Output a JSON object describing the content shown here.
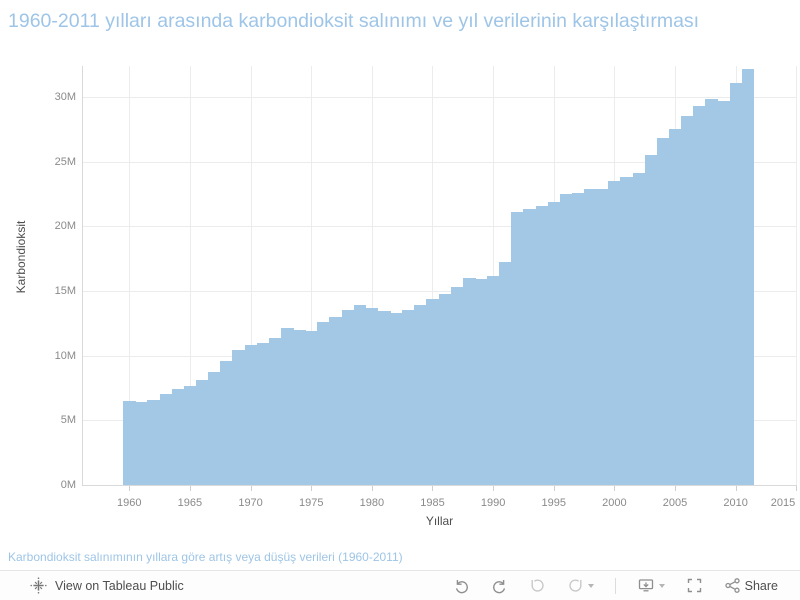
{
  "title": {
    "text": "1960-2011 yılları arasında karbondioksit salınımı ve yıl verilerinin karşılaştırması"
  },
  "caption": {
    "text": "Karbondioksit salınımının yıllara göre artış veya düşüş verileri (1960-2011)"
  },
  "toolbar": {
    "view_label": "View on Tableau Public",
    "share_label": "Share",
    "icons": [
      "tableau-logo",
      "undo",
      "redo",
      "revert",
      "refresh",
      "download",
      "fullscreen",
      "share"
    ]
  },
  "colors": {
    "area_fill": "#a3c8e6",
    "title_text": "#9ec5e7",
    "caption_text": "#9ec5e7",
    "axis_text": "#8a8a8a",
    "axis_title_text": "#4e4e4e",
    "gridline": "#ececec",
    "axis_line": "#d9d9d9",
    "toolbar_text": "#4e4e4e",
    "toolbar_icon": "#8f8f8f",
    "toolbar_icon_disabled": "#c9c9c9"
  },
  "chart_data": {
    "type": "area",
    "style": "step-area (unit-width bars, no gaps)",
    "title": "1960-2011 yılları arasında karbondioksit salınımı ve yıl verilerinin karşılaştırması",
    "xlabel": "Yıllar",
    "ylabel": "Karbondioksit",
    "unit": "M",
    "grid": true,
    "legend": false,
    "x_ticks": [
      "1960",
      "1965",
      "1970",
      "1975",
      "1980",
      "1985",
      "1990",
      "1995",
      "2000",
      "2005",
      "2010",
      "2015"
    ],
    "y_ticks": [
      "0M",
      "5M",
      "10M",
      "15M",
      "20M",
      "25M",
      "30M"
    ],
    "ylim": [
      0,
      32.4
    ],
    "xlim": [
      1956,
      2015.5
    ],
    "x": [
      1960,
      1961,
      1962,
      1963,
      1964,
      1965,
      1966,
      1967,
      1968,
      1969,
      1970,
      1971,
      1972,
      1973,
      1974,
      1975,
      1976,
      1977,
      1978,
      1979,
      1980,
      1981,
      1982,
      1983,
      1984,
      1985,
      1986,
      1987,
      1988,
      1989,
      1990,
      1991,
      1992,
      1993,
      1994,
      1995,
      1996,
      1997,
      1998,
      1999,
      2000,
      2001,
      2002,
      2003,
      2004,
      2005,
      2006,
      2007,
      2008,
      2009,
      2010,
      2011
    ],
    "values": [
      6.5,
      6.4,
      6.6,
      7.0,
      7.4,
      7.65,
      8.1,
      8.7,
      9.6,
      10.4,
      10.8,
      11.0,
      11.4,
      12.1,
      12.0,
      11.9,
      12.6,
      13.0,
      13.5,
      13.95,
      13.7,
      13.45,
      13.3,
      13.5,
      13.9,
      14.4,
      14.8,
      15.3,
      16.0,
      15.95,
      16.15,
      17.25,
      21.1,
      21.35,
      21.55,
      21.9,
      22.5,
      22.6,
      22.85,
      22.9,
      23.5,
      23.8,
      24.1,
      25.5,
      26.8,
      27.5,
      28.5,
      29.3,
      29.85,
      29.7,
      31.1,
      32.15
    ]
  }
}
